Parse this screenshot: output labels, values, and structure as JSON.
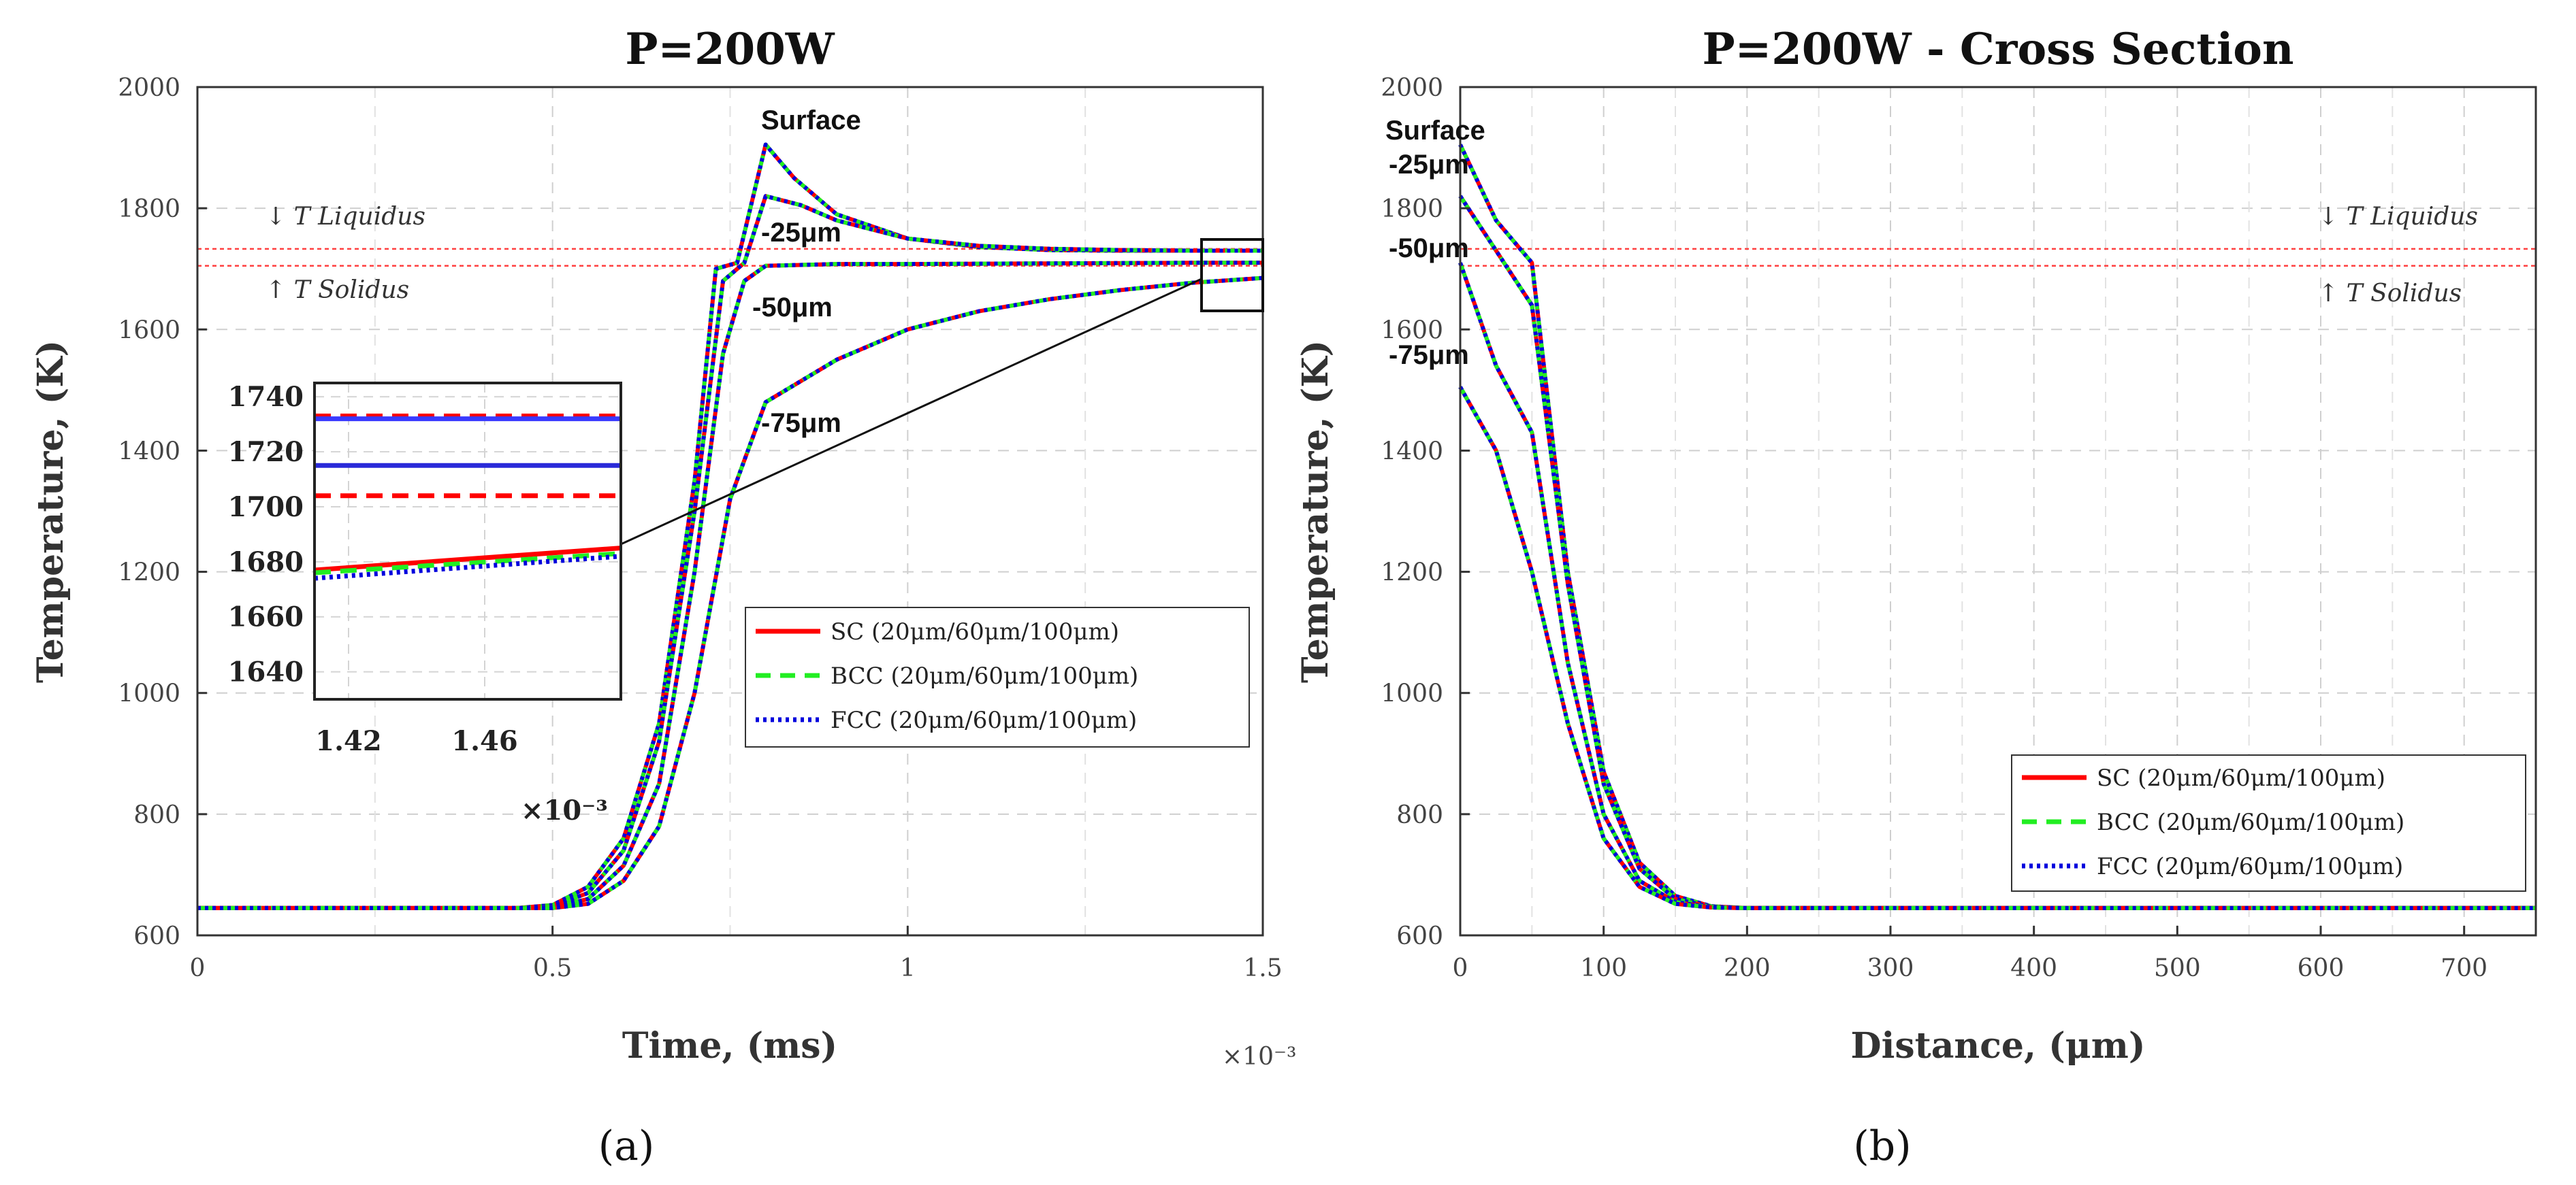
{
  "chart_data": [
    {
      "type": "line",
      "panel": "a",
      "title": "P=200W",
      "xlabel": "Time, (ms)",
      "ylabel": "Temperature, (K)",
      "x_multiplier": "×10⁻³",
      "xlim": [
        0,
        1.5
      ],
      "ylim": [
        600,
        2000
      ],
      "xticks": [
        "0",
        "0.5",
        "1",
        "1.5"
      ],
      "xtick_values": [
        0,
        0.5,
        1,
        1.5
      ],
      "yticks": [
        "600",
        "800",
        "1000",
        "1200",
        "1400",
        "1600",
        "1800",
        "2000"
      ],
      "ytick_values": [
        600,
        800,
        1000,
        1200,
        1400,
        1600,
        1800,
        2000
      ],
      "grid": true,
      "reference_lines": [
        {
          "label": "↓ T Liquidus",
          "value": 1733,
          "color": "#ff4040"
        },
        {
          "label": "↑ T Solidus",
          "value": 1705,
          "color": "#ff4040"
        }
      ],
      "depth_labels": [
        "Surface",
        "-25μm",
        "-50μm",
        "-75μm"
      ],
      "legend": [
        "SC (20μm/60μm/100μm)",
        "BCC (20μm/60μm/100μm)",
        "FCC (20μm/60μm/100μm)"
      ],
      "legend_colors": [
        "#ff0000",
        "#22ee22",
        "#0000dd"
      ],
      "series": [
        {
          "name": "Surface",
          "x": [
            0,
            0.45,
            0.5,
            0.55,
            0.6,
            0.65,
            0.7,
            0.73,
            0.76,
            0.8,
            0.84,
            0.9,
            1.0,
            1.1,
            1.2,
            1.3,
            1.4,
            1.5
          ],
          "values": [
            645,
            645,
            650,
            680,
            760,
            950,
            1350,
            1700,
            1710,
            1905,
            1850,
            1790,
            1750,
            1736,
            1731,
            1730,
            1730,
            1730
          ]
        },
        {
          "name": "-25μm",
          "x": [
            0,
            0.45,
            0.5,
            0.55,
            0.6,
            0.65,
            0.7,
            0.74,
            0.77,
            0.8,
            0.85,
            0.9,
            1.0,
            1.1,
            1.2,
            1.3,
            1.4,
            1.5
          ],
          "values": [
            645,
            645,
            648,
            670,
            740,
            920,
            1300,
            1680,
            1710,
            1820,
            1805,
            1780,
            1750,
            1738,
            1733,
            1731,
            1730,
            1730
          ]
        },
        {
          "name": "-50μm",
          "x": [
            0,
            0.45,
            0.5,
            0.55,
            0.6,
            0.65,
            0.7,
            0.74,
            0.77,
            0.8,
            0.9,
            1.0,
            1.2,
            1.4,
            1.5
          ],
          "values": [
            645,
            645,
            646,
            660,
            715,
            850,
            1200,
            1560,
            1680,
            1705,
            1708,
            1708,
            1709,
            1710,
            1710
          ]
        },
        {
          "name": "-75μm",
          "x": [
            0,
            0.45,
            0.5,
            0.55,
            0.6,
            0.65,
            0.7,
            0.75,
            0.8,
            0.9,
            1.0,
            1.1,
            1.2,
            1.3,
            1.4,
            1.5
          ],
          "values": [
            645,
            645,
            645,
            652,
            690,
            780,
            1000,
            1320,
            1480,
            1550,
            1600,
            1630,
            1650,
            1665,
            1677,
            1685
          ]
        }
      ],
      "inset": {
        "xlim": [
          1.41,
          1.5
        ],
        "ylim": [
          1630,
          1745
        ],
        "xticks": [
          "1.42",
          "1.46"
        ],
        "xtick_values": [
          1.42,
          1.46
        ],
        "yticks": [
          "1640",
          "1660",
          "1680",
          "1700",
          "1720",
          "1740"
        ],
        "ytick_values": [
          1640,
          1660,
          1680,
          1700,
          1720,
          1740
        ],
        "x_multiplier": "×10⁻³",
        "lines": [
          {
            "name": "SC liquidus",
            "values": [
              1733,
              1733
            ],
            "color": "#ff0000",
            "style": "dash"
          },
          {
            "name": "curve 1",
            "values": [
              1732,
              1732
            ],
            "color": "#3a3aff",
            "style": "solid"
          },
          {
            "name": "curve 2",
            "values": [
              1715,
              1715
            ],
            "color": "#2a2ad8",
            "style": "solid"
          },
          {
            "name": "SC solidus",
            "values": [
              1704,
              1704
            ],
            "color": "#ff0000",
            "style": "dash"
          },
          {
            "name": "SC -75μm",
            "values": [
              1677,
              1685
            ],
            "color": "#ff0000",
            "style": "solid"
          },
          {
            "name": "BCC -75μm",
            "values": [
              1676,
              1683
            ],
            "color": "#22ee22",
            "style": "dash"
          },
          {
            "name": "FCC -75μm",
            "values": [
              1674,
              1682
            ],
            "color": "#0000dd",
            "style": "dot"
          }
        ]
      },
      "caption": "(a)"
    },
    {
      "type": "line",
      "panel": "b",
      "title": "P=200W - Cross Section",
      "xlabel": "Distance, (μm)",
      "ylabel": "Temperature, (K)",
      "xlim": [
        0,
        750
      ],
      "ylim": [
        600,
        2000
      ],
      "xticks": [
        "0",
        "100",
        "200",
        "300",
        "400",
        "500",
        "600",
        "700"
      ],
      "xtick_values": [
        0,
        100,
        200,
        300,
        400,
        500,
        600,
        700
      ],
      "yticks": [
        "600",
        "800",
        "1000",
        "1200",
        "1400",
        "1600",
        "1800",
        "2000"
      ],
      "ytick_values": [
        600,
        800,
        1000,
        1200,
        1400,
        1600,
        1800,
        2000
      ],
      "grid": true,
      "reference_lines": [
        {
          "label": "↓ T Liquidus",
          "value": 1733,
          "color": "#ff4040"
        },
        {
          "label": "↑ T Solidus",
          "value": 1705,
          "color": "#ff4040"
        }
      ],
      "depth_labels": [
        "Surface",
        "-25μm",
        "-50μm",
        "-75μm"
      ],
      "legend": [
        "SC (20μm/60μm/100μm)",
        "BCC (20μm/60μm/100μm)",
        "FCC (20μm/60μm/100μm)"
      ],
      "legend_colors": [
        "#ff0000",
        "#22ee22",
        "#0000dd"
      ],
      "series": [
        {
          "name": "Surface",
          "x": [
            0,
            25,
            50,
            75,
            100,
            125,
            150,
            175,
            200,
            300,
            400,
            500,
            600,
            700,
            750
          ],
          "values": [
            1905,
            1780,
            1710,
            1200,
            870,
            720,
            665,
            648,
            645,
            645,
            645,
            645,
            645,
            645,
            645
          ]
        },
        {
          "name": "-25μm",
          "x": [
            0,
            25,
            50,
            75,
            100,
            125,
            150,
            175,
            200,
            300,
            400,
            500,
            600,
            700,
            750
          ],
          "values": [
            1820,
            1730,
            1640,
            1180,
            850,
            710,
            660,
            647,
            645,
            645,
            645,
            645,
            645,
            645,
            645
          ]
        },
        {
          "name": "-50μm",
          "x": [
            0,
            25,
            50,
            75,
            100,
            125,
            150,
            175,
            200,
            300,
            400,
            500,
            600,
            700,
            750
          ],
          "values": [
            1710,
            1540,
            1430,
            1050,
            800,
            690,
            655,
            646,
            645,
            645,
            645,
            645,
            645,
            645,
            645
          ]
        },
        {
          "name": "-75μm",
          "x": [
            0,
            25,
            50,
            75,
            100,
            125,
            150,
            175,
            200,
            300,
            400,
            500,
            600,
            700,
            750
          ],
          "values": [
            1505,
            1400,
            1200,
            950,
            760,
            680,
            652,
            646,
            645,
            645,
            645,
            645,
            645,
            645,
            645
          ]
        }
      ],
      "caption": "(b)"
    }
  ]
}
